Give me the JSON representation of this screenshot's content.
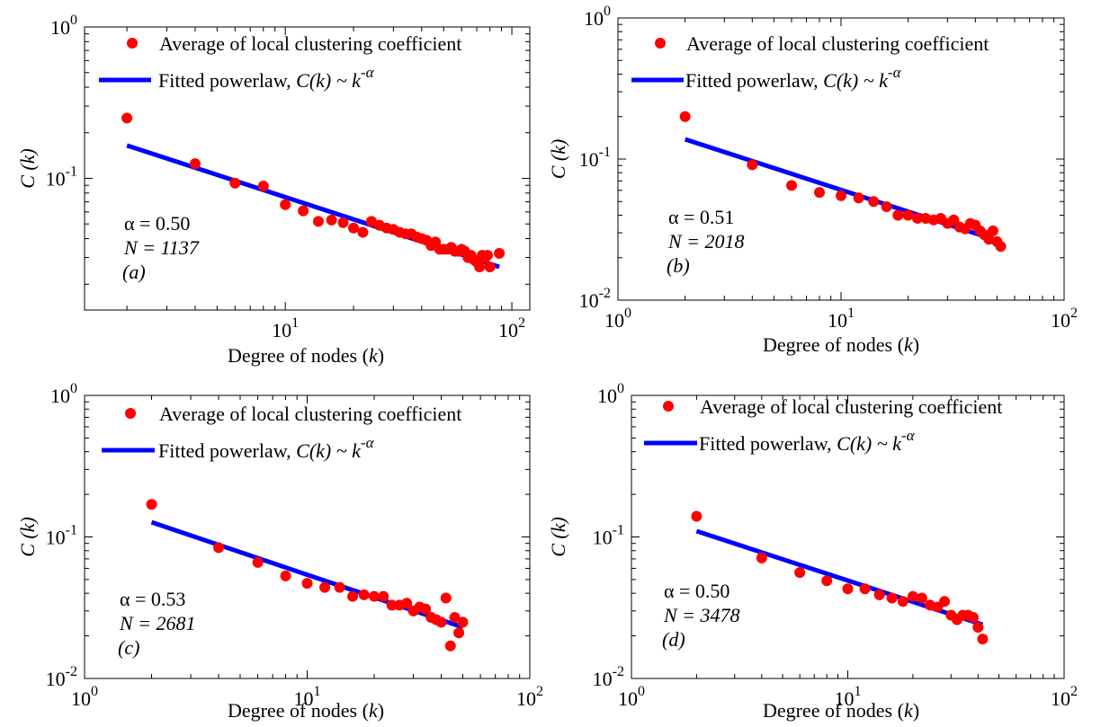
{
  "figure": {
    "dot_color": "#ff0000",
    "line_color": "#0000ff"
  },
  "chart_data": [
    {
      "type": "scatter",
      "panel_label": "(a)",
      "xlabel": "Degree of nodes (k)",
      "ylabel": "C (k)",
      "xscale": "log",
      "yscale": "log",
      "xlim": [
        1.3,
        120
      ],
      "ylim": [
        0.0135,
        1.0
      ],
      "xticks": [
        {
          "value": 10,
          "label": "10^1"
        },
        {
          "value": 100,
          "label": "10^2"
        }
      ],
      "yticks": [
        {
          "value": 0.1,
          "label": "10^-1"
        },
        {
          "value": 1,
          "label": "10^0"
        }
      ],
      "legend": {
        "position": "top",
        "markers_label": "Average of local clustering coefficient",
        "line_label": "Fitted powerlaw, C(k) ~ k^-α"
      },
      "annotations": {
        "alpha": "α = 0.50",
        "n": "N = 1137"
      },
      "series": [
        {
          "name": "Average of local clustering coefficient",
          "mark": "dot",
          "x": [
            2,
            4,
            6,
            8,
            10,
            12,
            14,
            16,
            18,
            20,
            22,
            24,
            26,
            28,
            30,
            32,
            34,
            36,
            38,
            40,
            42,
            44,
            46,
            48,
            50,
            52,
            54,
            56,
            58,
            60,
            62,
            64,
            66,
            68,
            70,
            72,
            74,
            76,
            78,
            80,
            88
          ],
          "y": [
            0.25,
            0.125,
            0.093,
            0.089,
            0.067,
            0.061,
            0.052,
            0.053,
            0.051,
            0.047,
            0.044,
            0.052,
            0.049,
            0.047,
            0.046,
            0.044,
            0.043,
            0.043,
            0.041,
            0.04,
            0.039,
            0.036,
            0.038,
            0.034,
            0.034,
            0.034,
            0.035,
            0.033,
            0.033,
            0.034,
            0.033,
            0.03,
            0.031,
            0.029,
            0.028,
            0.026,
            0.031,
            0.03,
            0.031,
            0.026,
            0.032
          ]
        },
        {
          "name": "Fitted powerlaw, C(k) ~ k^-α",
          "mark": "line",
          "x": [
            2,
            88
          ],
          "y": [
            0.165,
            0.026
          ]
        }
      ]
    },
    {
      "type": "scatter",
      "panel_label": "(b)",
      "xlabel": "Degree of nodes (k)",
      "ylabel": "C (k)",
      "xscale": "log",
      "yscale": "log",
      "xlim": [
        1,
        100
      ],
      "ylim": [
        0.01,
        1.0
      ],
      "xticks": [
        {
          "value": 1,
          "label": "10^0"
        },
        {
          "value": 10,
          "label": "10^1"
        },
        {
          "value": 100,
          "label": "10^2"
        }
      ],
      "yticks": [
        {
          "value": 0.01,
          "label": "10^-2"
        },
        {
          "value": 0.1,
          "label": "10^-1"
        },
        {
          "value": 1,
          "label": "10^0"
        }
      ],
      "legend": {
        "position": "top",
        "markers_label": "Average of local clustering coefficient",
        "line_label": "Fitted powerlaw, C(k) ~ k^-α"
      },
      "annotations": {
        "alpha": "α = 0.51",
        "n": "N = 2018"
      },
      "series": [
        {
          "name": "Average of local clustering coefficient",
          "mark": "dot",
          "x": [
            2,
            4,
            6,
            8,
            10,
            12,
            14,
            16,
            18,
            20,
            22,
            24,
            26,
            28,
            30,
            32,
            34,
            36,
            38,
            40,
            42,
            44,
            46,
            48,
            50,
            52
          ],
          "y": [
            0.2,
            0.091,
            0.065,
            0.058,
            0.055,
            0.053,
            0.05,
            0.046,
            0.04,
            0.04,
            0.038,
            0.038,
            0.037,
            0.038,
            0.035,
            0.037,
            0.033,
            0.032,
            0.035,
            0.034,
            0.031,
            0.029,
            0.027,
            0.031,
            0.026,
            0.024
          ]
        },
        {
          "name": "Fitted powerlaw, C(k) ~ k^-α",
          "mark": "line",
          "x": [
            2,
            52
          ],
          "y": [
            0.138,
            0.026
          ]
        }
      ]
    },
    {
      "type": "scatter",
      "panel_label": "(c)",
      "xlabel": "Degree of nodes (k)",
      "ylabel": "C (k)",
      "xscale": "log",
      "yscale": "log",
      "xlim": [
        1,
        100
      ],
      "ylim": [
        0.01,
        1.0
      ],
      "xticks": [
        {
          "value": 1,
          "label": "10^0"
        },
        {
          "value": 10,
          "label": "10^1"
        },
        {
          "value": 100,
          "label": "10^2"
        }
      ],
      "yticks": [
        {
          "value": 0.01,
          "label": "10^-2"
        },
        {
          "value": 0.1,
          "label": "10^-1"
        },
        {
          "value": 1,
          "label": "10^0"
        }
      ],
      "legend": {
        "position": "top",
        "markers_label": "Average of local clustering coefficient",
        "line_label": "Fitted powerlaw, C(k) ~ k^-α"
      },
      "annotations": {
        "alpha": "α = 0.53",
        "n": "N = 2681"
      },
      "series": [
        {
          "name": "Average of local clustering coefficient",
          "mark": "dot",
          "x": [
            2,
            4,
            6,
            8,
            10,
            12,
            14,
            16,
            18,
            20,
            22,
            24,
            26,
            28,
            30,
            32,
            34,
            36,
            38,
            40,
            42,
            44,
            46,
            48,
            50
          ],
          "y": [
            0.17,
            0.084,
            0.066,
            0.053,
            0.047,
            0.044,
            0.044,
            0.038,
            0.039,
            0.038,
            0.038,
            0.033,
            0.033,
            0.034,
            0.03,
            0.032,
            0.031,
            0.027,
            0.026,
            0.025,
            0.037,
            0.017,
            0.027,
            0.021,
            0.025
          ]
        },
        {
          "name": "Fitted powerlaw, C(k) ~ k^-α",
          "mark": "line",
          "x": [
            2,
            50
          ],
          "y": [
            0.127,
            0.023
          ]
        }
      ]
    },
    {
      "type": "scatter",
      "panel_label": "(d)",
      "xlabel": "Degree of nodes (k)",
      "ylabel": "C (k)",
      "xscale": "log",
      "yscale": "log",
      "xlim": [
        1,
        100
      ],
      "ylim": [
        0.01,
        1.0
      ],
      "xticks": [
        {
          "value": 1,
          "label": "10^0"
        },
        {
          "value": 10,
          "label": "10^1"
        },
        {
          "value": 100,
          "label": "10^2"
        }
      ],
      "yticks": [
        {
          "value": 0.01,
          "label": "10^-2"
        },
        {
          "value": 0.1,
          "label": "10^-1"
        },
        {
          "value": 1,
          "label": "10^0"
        }
      ],
      "legend": {
        "position": "top",
        "markers_label": "Average of local clustering coefficient",
        "line_label": "Fitted powerlaw, C(k) ~ k^-α"
      },
      "annotations": {
        "alpha": "α = 0.50",
        "n": "N = 3478"
      },
      "series": [
        {
          "name": "Average of local clustering coefficient",
          "mark": "dot",
          "x": [
            2,
            4,
            6,
            8,
            10,
            12,
            14,
            16,
            18,
            20,
            22,
            24,
            26,
            28,
            30,
            32,
            34,
            36,
            38,
            40,
            42
          ],
          "y": [
            0.14,
            0.071,
            0.056,
            0.049,
            0.043,
            0.043,
            0.039,
            0.037,
            0.035,
            0.038,
            0.037,
            0.033,
            0.032,
            0.035,
            0.028,
            0.026,
            0.028,
            0.028,
            0.027,
            0.023,
            0.019
          ]
        },
        {
          "name": "Fitted powerlaw, C(k) ~ k^-α",
          "mark": "line",
          "x": [
            2,
            42
          ],
          "y": [
            0.11,
            0.024
          ]
        }
      ]
    }
  ]
}
